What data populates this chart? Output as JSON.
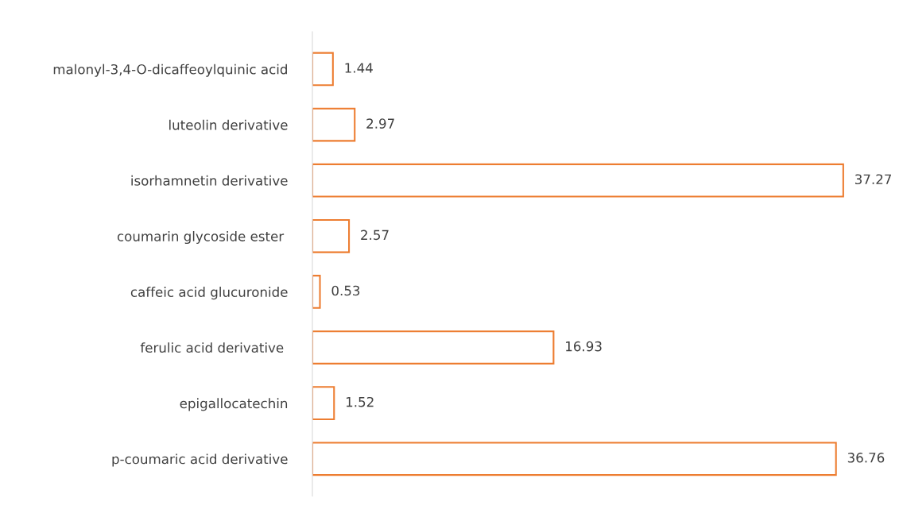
{
  "chart_data": {
    "type": "bar",
    "orientation": "horizontal",
    "categories": [
      "malonyl-3,4-O-dicaffeoylquinic acid",
      "luteolin derivative",
      "isorhamnetin derivative",
      "coumarin glycoside ester ",
      "caffeic acid glucuronide",
      "ferulic acid derivative ",
      "epigallocatechin",
      "p-coumaric acid derivative"
    ],
    "values": [
      1.44,
      2.97,
      37.27,
      2.57,
      0.53,
      16.93,
      1.52,
      36.76
    ],
    "color": "#ed7d31",
    "data_labels": true,
    "grid": false,
    "legend": false
  }
}
